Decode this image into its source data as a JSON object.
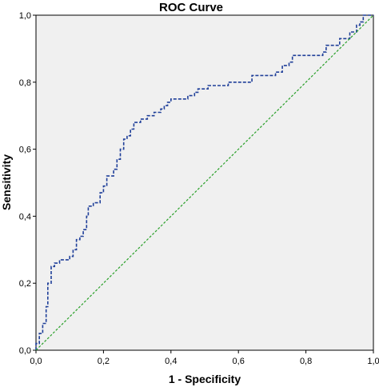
{
  "chart_data": {
    "type": "line",
    "title": "ROC Curve",
    "xlabel": "1 - Specificity",
    "ylabel": "Sensitivity",
    "xlim": [
      0,
      1
    ],
    "ylim": [
      0,
      1
    ],
    "xticks": [
      "0,0",
      "0,2",
      "0,4",
      "0,6",
      "0,8",
      "1,0"
    ],
    "yticks": [
      "0,0",
      "0,2",
      "0,4",
      "0,6",
      "0,8",
      "1,0"
    ],
    "grid": false,
    "legend": "none",
    "plot_background": "#f0f0f0",
    "series": [
      {
        "style": "dashed",
        "color": "#1f3f99",
        "points": [
          [
            0.0,
            0.0
          ],
          [
            0.0,
            0.02
          ],
          [
            0.01,
            0.02
          ],
          [
            0.01,
            0.05
          ],
          [
            0.02,
            0.05
          ],
          [
            0.02,
            0.08
          ],
          [
            0.03,
            0.08
          ],
          [
            0.03,
            0.13
          ],
          [
            0.035,
            0.13
          ],
          [
            0.035,
            0.2
          ],
          [
            0.045,
            0.2
          ],
          [
            0.045,
            0.25
          ],
          [
            0.055,
            0.25
          ],
          [
            0.055,
            0.26
          ],
          [
            0.07,
            0.26
          ],
          [
            0.07,
            0.27
          ],
          [
            0.1,
            0.27
          ],
          [
            0.1,
            0.28
          ],
          [
            0.11,
            0.28
          ],
          [
            0.11,
            0.3
          ],
          [
            0.12,
            0.3
          ],
          [
            0.12,
            0.33
          ],
          [
            0.13,
            0.33
          ],
          [
            0.13,
            0.34
          ],
          [
            0.14,
            0.34
          ],
          [
            0.14,
            0.36
          ],
          [
            0.15,
            0.36
          ],
          [
            0.15,
            0.4
          ],
          [
            0.155,
            0.4
          ],
          [
            0.155,
            0.43
          ],
          [
            0.17,
            0.43
          ],
          [
            0.17,
            0.44
          ],
          [
            0.19,
            0.44
          ],
          [
            0.19,
            0.47
          ],
          [
            0.2,
            0.47
          ],
          [
            0.2,
            0.49
          ],
          [
            0.21,
            0.49
          ],
          [
            0.21,
            0.52
          ],
          [
            0.23,
            0.52
          ],
          [
            0.23,
            0.54
          ],
          [
            0.24,
            0.54
          ],
          [
            0.24,
            0.57
          ],
          [
            0.25,
            0.57
          ],
          [
            0.25,
            0.6
          ],
          [
            0.26,
            0.6
          ],
          [
            0.26,
            0.63
          ],
          [
            0.27,
            0.63
          ],
          [
            0.27,
            0.64
          ],
          [
            0.28,
            0.64
          ],
          [
            0.28,
            0.66
          ],
          [
            0.29,
            0.66
          ],
          [
            0.29,
            0.68
          ],
          [
            0.31,
            0.68
          ],
          [
            0.31,
            0.69
          ],
          [
            0.33,
            0.69
          ],
          [
            0.33,
            0.7
          ],
          [
            0.35,
            0.7
          ],
          [
            0.35,
            0.71
          ],
          [
            0.37,
            0.71
          ],
          [
            0.37,
            0.72
          ],
          [
            0.38,
            0.72
          ],
          [
            0.38,
            0.73
          ],
          [
            0.39,
            0.73
          ],
          [
            0.39,
            0.74
          ],
          [
            0.4,
            0.74
          ],
          [
            0.4,
            0.75
          ],
          [
            0.45,
            0.75
          ],
          [
            0.45,
            0.76
          ],
          [
            0.47,
            0.76
          ],
          [
            0.47,
            0.77
          ],
          [
            0.48,
            0.77
          ],
          [
            0.48,
            0.78
          ],
          [
            0.51,
            0.78
          ],
          [
            0.51,
            0.79
          ],
          [
            0.57,
            0.79
          ],
          [
            0.57,
            0.8
          ],
          [
            0.64,
            0.8
          ],
          [
            0.64,
            0.82
          ],
          [
            0.71,
            0.82
          ],
          [
            0.71,
            0.83
          ],
          [
            0.73,
            0.83
          ],
          [
            0.73,
            0.85
          ],
          [
            0.75,
            0.85
          ],
          [
            0.75,
            0.86
          ],
          [
            0.76,
            0.86
          ],
          [
            0.76,
            0.88
          ],
          [
            0.85,
            0.88
          ],
          [
            0.85,
            0.89
          ],
          [
            0.86,
            0.89
          ],
          [
            0.86,
            0.91
          ],
          [
            0.9,
            0.91
          ],
          [
            0.9,
            0.93
          ],
          [
            0.93,
            0.93
          ],
          [
            0.93,
            0.95
          ],
          [
            0.95,
            0.95
          ],
          [
            0.95,
            0.97
          ],
          [
            0.96,
            0.97
          ],
          [
            0.96,
            0.98
          ],
          [
            0.97,
            0.98
          ],
          [
            0.97,
            1.0
          ],
          [
            1.0,
            1.0
          ]
        ]
      },
      {
        "style": "dashed",
        "color": "#2aa02a",
        "points": [
          [
            0,
            0
          ],
          [
            1,
            1
          ]
        ]
      }
    ]
  }
}
